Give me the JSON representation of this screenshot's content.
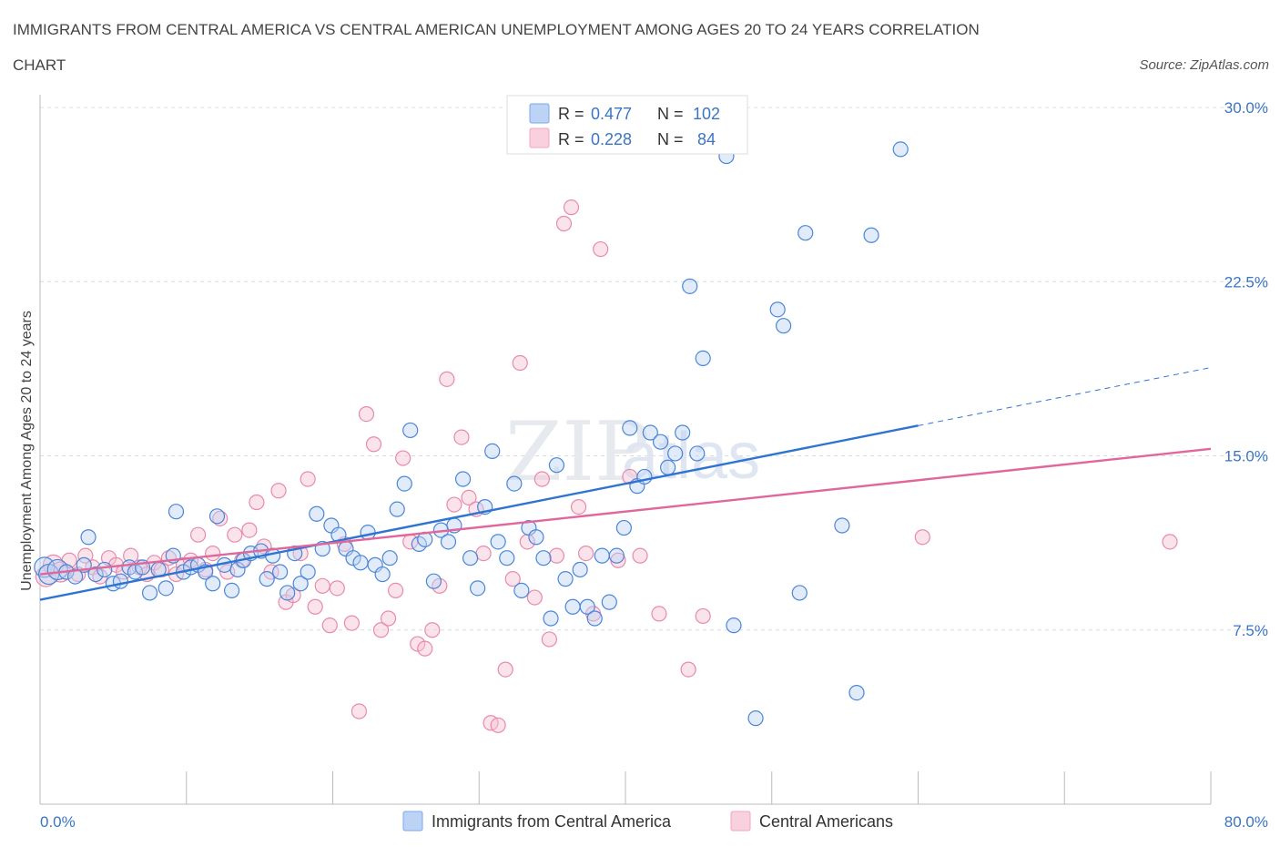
{
  "chart_data": {
    "type": "scatter",
    "title": "IMMIGRANTS FROM CENTRAL AMERICA VS CENTRAL AMERICAN UNEMPLOYMENT AMONG AGES 20 TO 24 YEARS CORRELATION CHART",
    "source": "Source: ZipAtlas.com",
    "watermark": "ZIPatlas",
    "xlabel": "",
    "ylabel": "Unemployment Among Ages 20 to 24 years",
    "xlim": [
      0,
      80
    ],
    "ylim": [
      0,
      30
    ],
    "x_tick_labels": [
      {
        "value": 0,
        "label": "0.0%"
      },
      {
        "value": 80,
        "label": "80.0%"
      }
    ],
    "y_tick_labels": [
      {
        "value": 7.5,
        "label": "7.5%"
      },
      {
        "value": 15,
        "label": "15.0%"
      },
      {
        "value": 22.5,
        "label": "22.5%"
      },
      {
        "value": 30,
        "label": "30.0%"
      }
    ],
    "colors": {
      "blue": "#7aa9e8",
      "blue_line": "#2f74d0",
      "pink": "#f2a6bf",
      "pink_line": "#e0679a",
      "tick": "#3a75c4"
    },
    "legend": [
      {
        "r_label": "R = ",
        "r_value": "0.477",
        "n_label": "N = ",
        "n_value": "102"
      },
      {
        "r_label": "R = ",
        "r_value": "0.228",
        "n_label": "N = ",
        "n_value": " 84"
      }
    ],
    "series": [
      {
        "name": "Immigrants from Central America",
        "color": "#7aa9e8",
        "trend": {
          "x0": 0,
          "y0": 8.8,
          "x1": 60,
          "y1": 16.3,
          "x_dash_end": 80,
          "y_dash_end": 18.8
        },
        "points": [
          [
            0.3,
            10.2
          ],
          [
            0.6,
            9.9
          ],
          [
            1.2,
            10.1
          ],
          [
            1.8,
            10.0
          ],
          [
            2.4,
            9.8
          ],
          [
            3.0,
            10.3
          ],
          [
            3.3,
            11.5
          ],
          [
            3.8,
            9.9
          ],
          [
            4.4,
            10.1
          ],
          [
            5.0,
            9.5
          ],
          [
            5.5,
            9.6
          ],
          [
            6.1,
            10.2
          ],
          [
            6.5,
            10.0
          ],
          [
            7.0,
            10.2
          ],
          [
            7.5,
            9.1
          ],
          [
            8.1,
            10.1
          ],
          [
            8.6,
            9.3
          ],
          [
            9.1,
            10.7
          ],
          [
            9.3,
            12.6
          ],
          [
            9.8,
            10.0
          ],
          [
            10.3,
            10.2
          ],
          [
            10.8,
            10.3
          ],
          [
            11.3,
            10.0
          ],
          [
            11.8,
            9.5
          ],
          [
            12.1,
            12.4
          ],
          [
            12.6,
            10.3
          ],
          [
            13.1,
            9.2
          ],
          [
            13.5,
            10.1
          ],
          [
            13.9,
            10.5
          ],
          [
            14.4,
            10.8
          ],
          [
            15.1,
            10.9
          ],
          [
            15.5,
            9.7
          ],
          [
            15.9,
            10.7
          ],
          [
            16.4,
            10.0
          ],
          [
            16.9,
            9.1
          ],
          [
            17.4,
            10.8
          ],
          [
            17.8,
            9.5
          ],
          [
            18.3,
            10.0
          ],
          [
            18.9,
            12.5
          ],
          [
            19.3,
            11.0
          ],
          [
            19.9,
            12.0
          ],
          [
            20.4,
            11.6
          ],
          [
            20.9,
            11.0
          ],
          [
            21.4,
            10.6
          ],
          [
            21.9,
            10.4
          ],
          [
            22.4,
            11.7
          ],
          [
            22.9,
            10.3
          ],
          [
            23.4,
            9.9
          ],
          [
            23.9,
            10.6
          ],
          [
            24.4,
            12.7
          ],
          [
            24.9,
            13.8
          ],
          [
            25.3,
            16.1
          ],
          [
            25.9,
            11.2
          ],
          [
            26.3,
            11.4
          ],
          [
            26.9,
            9.6
          ],
          [
            27.4,
            11.8
          ],
          [
            27.9,
            11.3
          ],
          [
            28.3,
            12.0
          ],
          [
            28.9,
            14.0
          ],
          [
            29.4,
            10.6
          ],
          [
            29.9,
            9.3
          ],
          [
            30.4,
            12.8
          ],
          [
            30.9,
            15.2
          ],
          [
            31.3,
            11.3
          ],
          [
            31.9,
            10.6
          ],
          [
            32.4,
            13.8
          ],
          [
            32.9,
            9.2
          ],
          [
            33.4,
            11.9
          ],
          [
            33.9,
            11.5
          ],
          [
            34.4,
            10.6
          ],
          [
            34.9,
            8.0
          ],
          [
            35.3,
            14.6
          ],
          [
            35.9,
            9.7
          ],
          [
            36.4,
            8.5
          ],
          [
            36.9,
            10.1
          ],
          [
            37.4,
            8.5
          ],
          [
            37.9,
            8.0
          ],
          [
            38.4,
            10.7
          ],
          [
            38.9,
            8.7
          ],
          [
            39.4,
            10.7
          ],
          [
            39.9,
            11.9
          ],
          [
            40.3,
            16.2
          ],
          [
            40.8,
            13.7
          ],
          [
            41.3,
            14.1
          ],
          [
            41.7,
            16.0
          ],
          [
            42.4,
            15.6
          ],
          [
            42.9,
            14.5
          ],
          [
            43.4,
            15.1
          ],
          [
            43.9,
            16.0
          ],
          [
            44.4,
            22.3
          ],
          [
            44.9,
            15.1
          ],
          [
            45.3,
            19.2
          ],
          [
            46.9,
            27.9
          ],
          [
            47.4,
            7.7
          ],
          [
            48.9,
            3.7
          ],
          [
            50.4,
            21.3
          ],
          [
            50.8,
            20.6
          ],
          [
            51.9,
            9.1
          ],
          [
            52.3,
            24.6
          ],
          [
            54.8,
            12.0
          ],
          [
            55.8,
            4.8
          ],
          [
            56.8,
            24.5
          ],
          [
            58.8,
            28.2
          ]
        ]
      },
      {
        "name": "Central Americans",
        "color": "#f2a6bf",
        "trend": {
          "x0": 0,
          "y0": 9.9,
          "x1": 80,
          "y1": 15.3
        },
        "points": [
          [
            0.4,
            9.8
          ],
          [
            0.9,
            10.3
          ],
          [
            1.4,
            10.0
          ],
          [
            2.0,
            10.5
          ],
          [
            2.6,
            9.9
          ],
          [
            3.1,
            10.7
          ],
          [
            3.6,
            10.2
          ],
          [
            4.1,
            9.8
          ],
          [
            4.7,
            10.6
          ],
          [
            5.2,
            10.3
          ],
          [
            5.7,
            10.0
          ],
          [
            6.2,
            10.7
          ],
          [
            6.8,
            10.2
          ],
          [
            7.3,
            9.9
          ],
          [
            7.8,
            10.4
          ],
          [
            8.3,
            10.1
          ],
          [
            8.8,
            10.6
          ],
          [
            9.3,
            9.9
          ],
          [
            9.8,
            10.3
          ],
          [
            10.3,
            10.5
          ],
          [
            10.8,
            11.6
          ],
          [
            11.3,
            10.1
          ],
          [
            11.8,
            10.8
          ],
          [
            12.3,
            12.3
          ],
          [
            12.8,
            10.0
          ],
          [
            13.3,
            11.6
          ],
          [
            13.8,
            10.5
          ],
          [
            14.3,
            11.8
          ],
          [
            14.8,
            13.0
          ],
          [
            15.3,
            11.1
          ],
          [
            15.8,
            10.0
          ],
          [
            16.3,
            13.5
          ],
          [
            16.8,
            8.7
          ],
          [
            17.3,
            9.0
          ],
          [
            17.8,
            10.8
          ],
          [
            18.3,
            14.0
          ],
          [
            18.8,
            8.5
          ],
          [
            19.3,
            9.4
          ],
          [
            19.8,
            7.7
          ],
          [
            20.3,
            9.3
          ],
          [
            20.8,
            11.2
          ],
          [
            21.3,
            7.8
          ],
          [
            21.8,
            4.0
          ],
          [
            22.3,
            16.8
          ],
          [
            22.8,
            15.5
          ],
          [
            23.3,
            7.5
          ],
          [
            23.8,
            8.0
          ],
          [
            24.3,
            9.2
          ],
          [
            24.8,
            14.9
          ],
          [
            25.3,
            11.3
          ],
          [
            25.8,
            6.9
          ],
          [
            26.3,
            6.7
          ],
          [
            26.8,
            7.5
          ],
          [
            27.3,
            9.4
          ],
          [
            27.8,
            18.3
          ],
          [
            28.3,
            12.9
          ],
          [
            28.8,
            15.8
          ],
          [
            29.3,
            13.2
          ],
          [
            29.8,
            12.7
          ],
          [
            30.3,
            10.8
          ],
          [
            30.8,
            3.5
          ],
          [
            31.3,
            3.4
          ],
          [
            31.8,
            5.8
          ],
          [
            32.3,
            9.7
          ],
          [
            32.8,
            19.0
          ],
          [
            33.3,
            11.3
          ],
          [
            33.8,
            8.9
          ],
          [
            34.3,
            14.0
          ],
          [
            34.8,
            7.1
          ],
          [
            35.3,
            10.7
          ],
          [
            35.8,
            25.0
          ],
          [
            36.3,
            25.7
          ],
          [
            36.8,
            12.8
          ],
          [
            37.3,
            10.8
          ],
          [
            37.8,
            8.2
          ],
          [
            38.3,
            23.9
          ],
          [
            39.5,
            10.5
          ],
          [
            40.3,
            14.1
          ],
          [
            41.0,
            10.7
          ],
          [
            42.3,
            8.2
          ],
          [
            44.3,
            5.8
          ],
          [
            45.3,
            8.1
          ],
          [
            60.3,
            11.5
          ],
          [
            77.2,
            11.3
          ]
        ]
      }
    ]
  },
  "bottom_legend": [
    {
      "label": "Immigrants from Central America"
    },
    {
      "label": "Central Americans"
    }
  ]
}
